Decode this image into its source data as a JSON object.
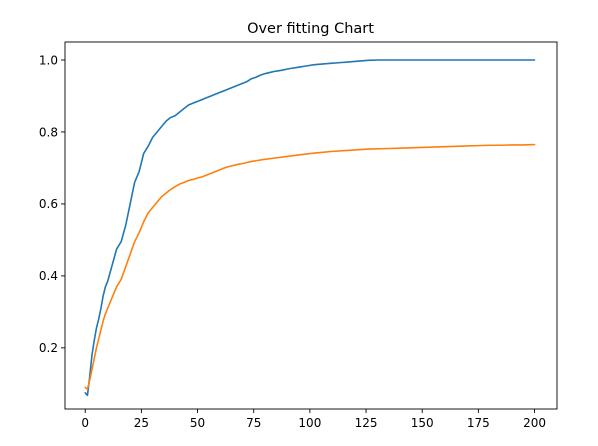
{
  "chart_data": {
    "type": "line",
    "title": "Over fitting Chart",
    "xlabel": "",
    "ylabel": "",
    "xlim": [
      -9,
      210
    ],
    "ylim": [
      0.03,
      1.05
    ],
    "x_ticks": [
      0,
      25,
      50,
      75,
      100,
      125,
      150,
      175,
      200
    ],
    "x_tick_labels": [
      "0",
      "25",
      "50",
      "75",
      "100",
      "125",
      "150",
      "175",
      "200"
    ],
    "y_ticks": [
      0.2,
      0.4,
      0.6,
      0.8,
      1.0
    ],
    "y_tick_labels": [
      "0.2",
      "0.4",
      "0.6",
      "0.8",
      "1.0"
    ],
    "grid": false,
    "legend": "none",
    "series": [
      {
        "color": "#1f77b4",
        "x": [
          0,
          1,
          2,
          3,
          4,
          5,
          6,
          7,
          8,
          9,
          10,
          12,
          14,
          16,
          18,
          20,
          22,
          24,
          26,
          28,
          30,
          32,
          34,
          36,
          38,
          40,
          42,
          44,
          46,
          48,
          50,
          52,
          54,
          56,
          58,
          60,
          62,
          64,
          66,
          68,
          70,
          72,
          74,
          76,
          78,
          80,
          82,
          84,
          86,
          88,
          90,
          92,
          94,
          96,
          98,
          100,
          102,
          104,
          106,
          108,
          110,
          112,
          114,
          116,
          118,
          120,
          122,
          124,
          126,
          128,
          130,
          140,
          150,
          160,
          170,
          180,
          190,
          200
        ],
        "y": [
          0.075,
          0.068,
          0.12,
          0.18,
          0.22,
          0.255,
          0.28,
          0.31,
          0.345,
          0.37,
          0.385,
          0.43,
          0.475,
          0.495,
          0.54,
          0.6,
          0.66,
          0.69,
          0.74,
          0.76,
          0.785,
          0.8,
          0.815,
          0.83,
          0.84,
          0.845,
          0.855,
          0.865,
          0.875,
          0.88,
          0.885,
          0.89,
          0.895,
          0.9,
          0.905,
          0.91,
          0.915,
          0.92,
          0.925,
          0.93,
          0.935,
          0.94,
          0.948,
          0.952,
          0.958,
          0.962,
          0.965,
          0.968,
          0.97,
          0.972,
          0.975,
          0.977,
          0.979,
          0.981,
          0.983,
          0.985,
          0.987,
          0.988,
          0.989,
          0.99,
          0.991,
          0.992,
          0.993,
          0.994,
          0.995,
          0.996,
          0.997,
          0.998,
          0.999,
          0.9995,
          1.0,
          1.0,
          1.0,
          1.0,
          1.0,
          1.0,
          1.0,
          1.0
        ]
      },
      {
        "color": "#ff7f0e",
        "x": [
          0,
          1,
          2,
          3,
          4,
          5,
          6,
          7,
          8,
          9,
          10,
          12,
          14,
          16,
          18,
          20,
          22,
          24,
          26,
          28,
          30,
          32,
          34,
          36,
          38,
          40,
          42,
          44,
          46,
          48,
          50,
          52,
          54,
          56,
          58,
          60,
          62,
          64,
          66,
          68,
          70,
          72,
          74,
          76,
          78,
          80,
          85,
          90,
          95,
          100,
          105,
          110,
          115,
          120,
          125,
          130,
          135,
          140,
          145,
          150,
          155,
          160,
          165,
          170,
          175,
          180,
          185,
          190,
          195,
          200
        ],
        "y": [
          0.09,
          0.085,
          0.11,
          0.14,
          0.17,
          0.2,
          0.225,
          0.25,
          0.275,
          0.295,
          0.31,
          0.34,
          0.37,
          0.39,
          0.425,
          0.46,
          0.495,
          0.52,
          0.55,
          0.575,
          0.59,
          0.605,
          0.62,
          0.63,
          0.64,
          0.648,
          0.655,
          0.66,
          0.665,
          0.668,
          0.672,
          0.675,
          0.68,
          0.685,
          0.69,
          0.695,
          0.7,
          0.704,
          0.707,
          0.71,
          0.712,
          0.715,
          0.718,
          0.72,
          0.722,
          0.724,
          0.728,
          0.732,
          0.736,
          0.74,
          0.743,
          0.746,
          0.748,
          0.75,
          0.752,
          0.753,
          0.754,
          0.755,
          0.756,
          0.757,
          0.758,
          0.759,
          0.76,
          0.761,
          0.762,
          0.763,
          0.763,
          0.764,
          0.764,
          0.765
        ]
      }
    ]
  }
}
